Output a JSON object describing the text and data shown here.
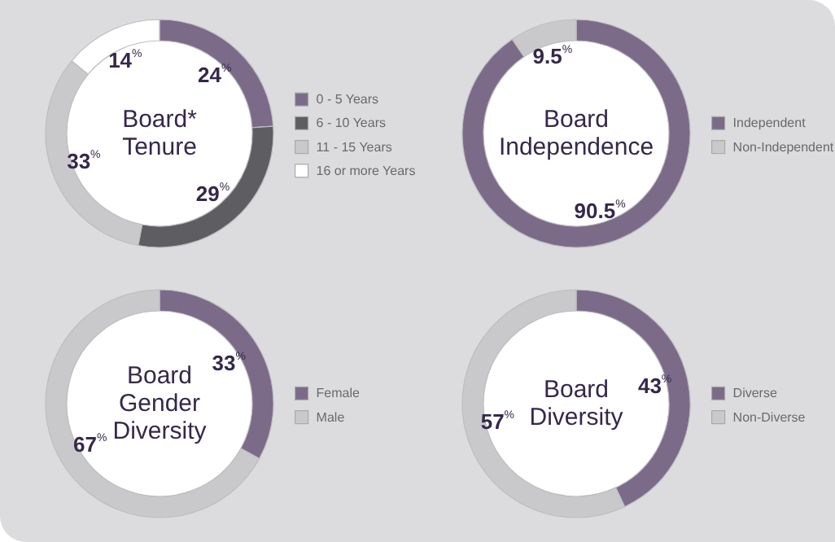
{
  "chart_data": [
    {
      "type": "donut",
      "title": "Board*\nTenure",
      "categories": [
        "0 - 5 Years",
        "6 - 10 Years",
        "11 - 15 Years",
        "16 or more Years"
      ],
      "values": [
        24,
        29,
        33,
        14
      ],
      "colors": [
        "#7b6b88",
        "#5e5e62",
        "#c9c9cc",
        "#ffffff"
      ],
      "value_labels": [
        "24%",
        "29%",
        "33%",
        "14%"
      ],
      "legend": "right"
    },
    {
      "type": "donut",
      "title": "Board\nIndependence",
      "categories": [
        "Independent",
        "Non-Independent"
      ],
      "values": [
        90.5,
        9.5
      ],
      "colors": [
        "#7b6b88",
        "#c9c9cc"
      ],
      "value_labels": [
        "90.5%",
        "9.5%"
      ],
      "legend": "right"
    },
    {
      "type": "donut",
      "title": "Board\nGender\nDiversity",
      "categories": [
        "Female",
        "Male"
      ],
      "values": [
        33,
        67
      ],
      "colors": [
        "#7b6b88",
        "#c9c9cc"
      ],
      "value_labels": [
        "33%",
        "67%"
      ],
      "legend": "right"
    },
    {
      "type": "donut",
      "title": "Board\nDiversity",
      "categories": [
        "Diverse",
        "Non-Diverse"
      ],
      "values": [
        43,
        57
      ],
      "colors": [
        "#7b6b88",
        "#c9c9cc"
      ],
      "value_labels": [
        "43%",
        "57%"
      ],
      "legend": "right"
    }
  ]
}
